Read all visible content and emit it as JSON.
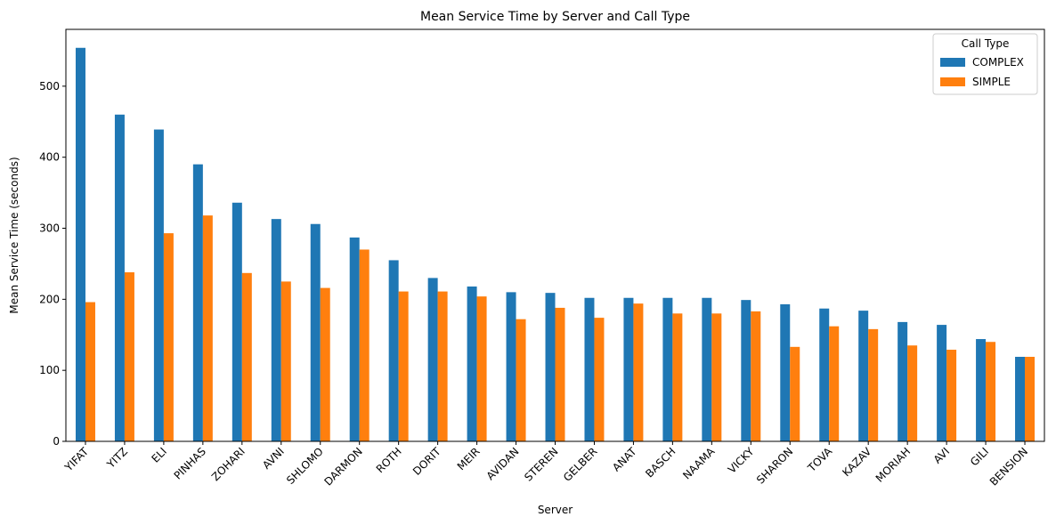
{
  "chart_data": {
    "type": "bar",
    "title": "Mean Service Time by Server and Call Type",
    "xlabel": "Server",
    "ylabel": "Mean Service Time (seconds)",
    "ylim": [
      0,
      580
    ],
    "yticks": [
      0,
      100,
      200,
      300,
      400,
      500
    ],
    "categories": [
      "YIFAT",
      "YITZ",
      "ELI",
      "PINHAS",
      "ZOHARI",
      "AVNI",
      "SHLOMO",
      "DARMON",
      "ROTH",
      "DORIT",
      "MEIR",
      "AVIDAN",
      "STEREN",
      "GELBER",
      "ANAT",
      "BASCH",
      "NAAMA",
      "VICKY",
      "SHARON",
      "TOVA",
      "KAZAV",
      "MORIAH",
      "AVI",
      "GILI",
      "BENSION"
    ],
    "series": [
      {
        "name": "COMPLEX",
        "color": "#1f77b4",
        "values": [
          554,
          460,
          439,
          390,
          336,
          313,
          306,
          287,
          255,
          230,
          218,
          210,
          209,
          202,
          202,
          202,
          202,
          199,
          193,
          187,
          184,
          168,
          164,
          144,
          119
        ]
      },
      {
        "name": "SIMPLE",
        "color": "#ff7f0e",
        "values": [
          196,
          238,
          293,
          318,
          237,
          225,
          216,
          270,
          211,
          211,
          204,
          172,
          188,
          174,
          194,
          180,
          180,
          183,
          133,
          162,
          158,
          135,
          129,
          140,
          119
        ]
      }
    ],
    "legend": {
      "title": "Call Type",
      "position": "top-right"
    },
    "grid": false
  }
}
